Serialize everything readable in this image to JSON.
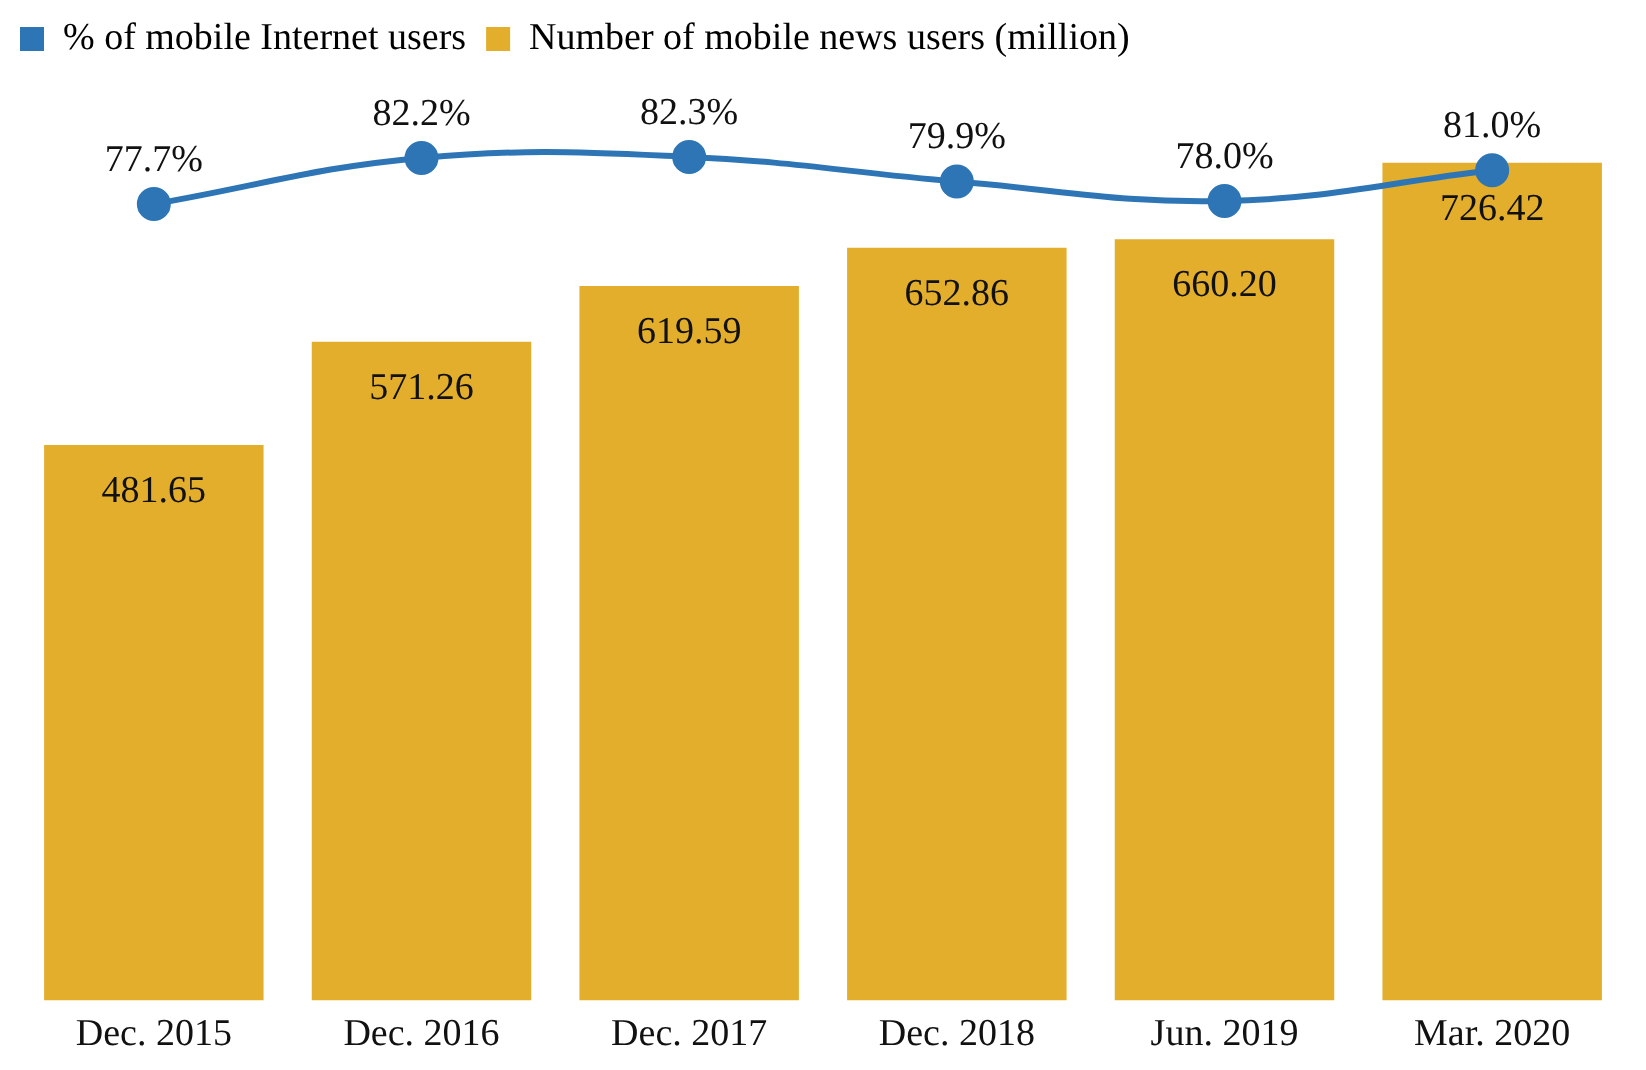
{
  "chart_data": {
    "type": "bar",
    "categories": [
      "Dec. 2015",
      "Dec. 2016",
      "Dec. 2017",
      "Dec. 2018",
      "Jun. 2019",
      "Mar. 2020"
    ],
    "series": [
      {
        "name": "% of mobile Internet users",
        "type": "line",
        "axis": "y2",
        "color": "#2e75b6",
        "values": [
          77.7,
          82.2,
          82.3,
          79.9,
          78.0,
          81.0
        ],
        "value_labels": [
          "77.7%",
          "82.2%",
          "82.3%",
          "79.9%",
          "78.0%",
          "81.0%"
        ]
      },
      {
        "name": "Number of mobile news users (million)",
        "color": "#e3ae2c",
        "values": [
          481.65,
          571.26,
          619.59,
          652.86,
          660.2,
          726.42
        ],
        "value_labels": [
          "481.65",
          "571.26",
          "619.59",
          "652.86",
          "660.20",
          "726.42"
        ]
      }
    ],
    "tick_labels": "x",
    "grid": false,
    "legend": "top left",
    "marker": "circle",
    "line_style": "solid"
  }
}
